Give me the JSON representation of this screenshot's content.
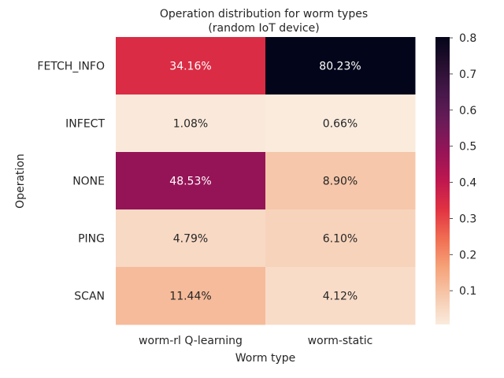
{
  "chart_data": {
    "type": "heatmap",
    "title": "Operation distribution for worm types",
    "subtitle": "(random IoT device)",
    "xlabel": "Worm type",
    "ylabel": "Operation",
    "columns": [
      "worm-rl Q-learning",
      "worm-static"
    ],
    "rows": [
      "FETCH_INFO",
      "INFECT",
      "NONE",
      "PING",
      "SCAN"
    ],
    "values": [
      [
        0.3416,
        0.8023
      ],
      [
        0.0108,
        0.0066
      ],
      [
        0.4853,
        0.089
      ],
      [
        0.0479,
        0.061
      ],
      [
        0.1144,
        0.0412
      ]
    ],
    "cell_labels": [
      [
        "34.16%",
        "80.23%"
      ],
      [
        "1.08%",
        "0.66%"
      ],
      [
        "48.53%",
        "8.90%"
      ],
      [
        "4.79%",
        "6.10%"
      ],
      [
        "11.44%",
        "4.12%"
      ]
    ],
    "colorbar": {
      "colormap": "rocket_r",
      "range": [
        0.0066,
        0.8023
      ],
      "ticks": [
        "0.1",
        "0.2",
        "0.3",
        "0.4",
        "0.5",
        "0.6",
        "0.7",
        "0.8"
      ],
      "tick_values": [
        0.1,
        0.2,
        0.3,
        0.4,
        0.5,
        0.6,
        0.7,
        0.8
      ]
    }
  }
}
